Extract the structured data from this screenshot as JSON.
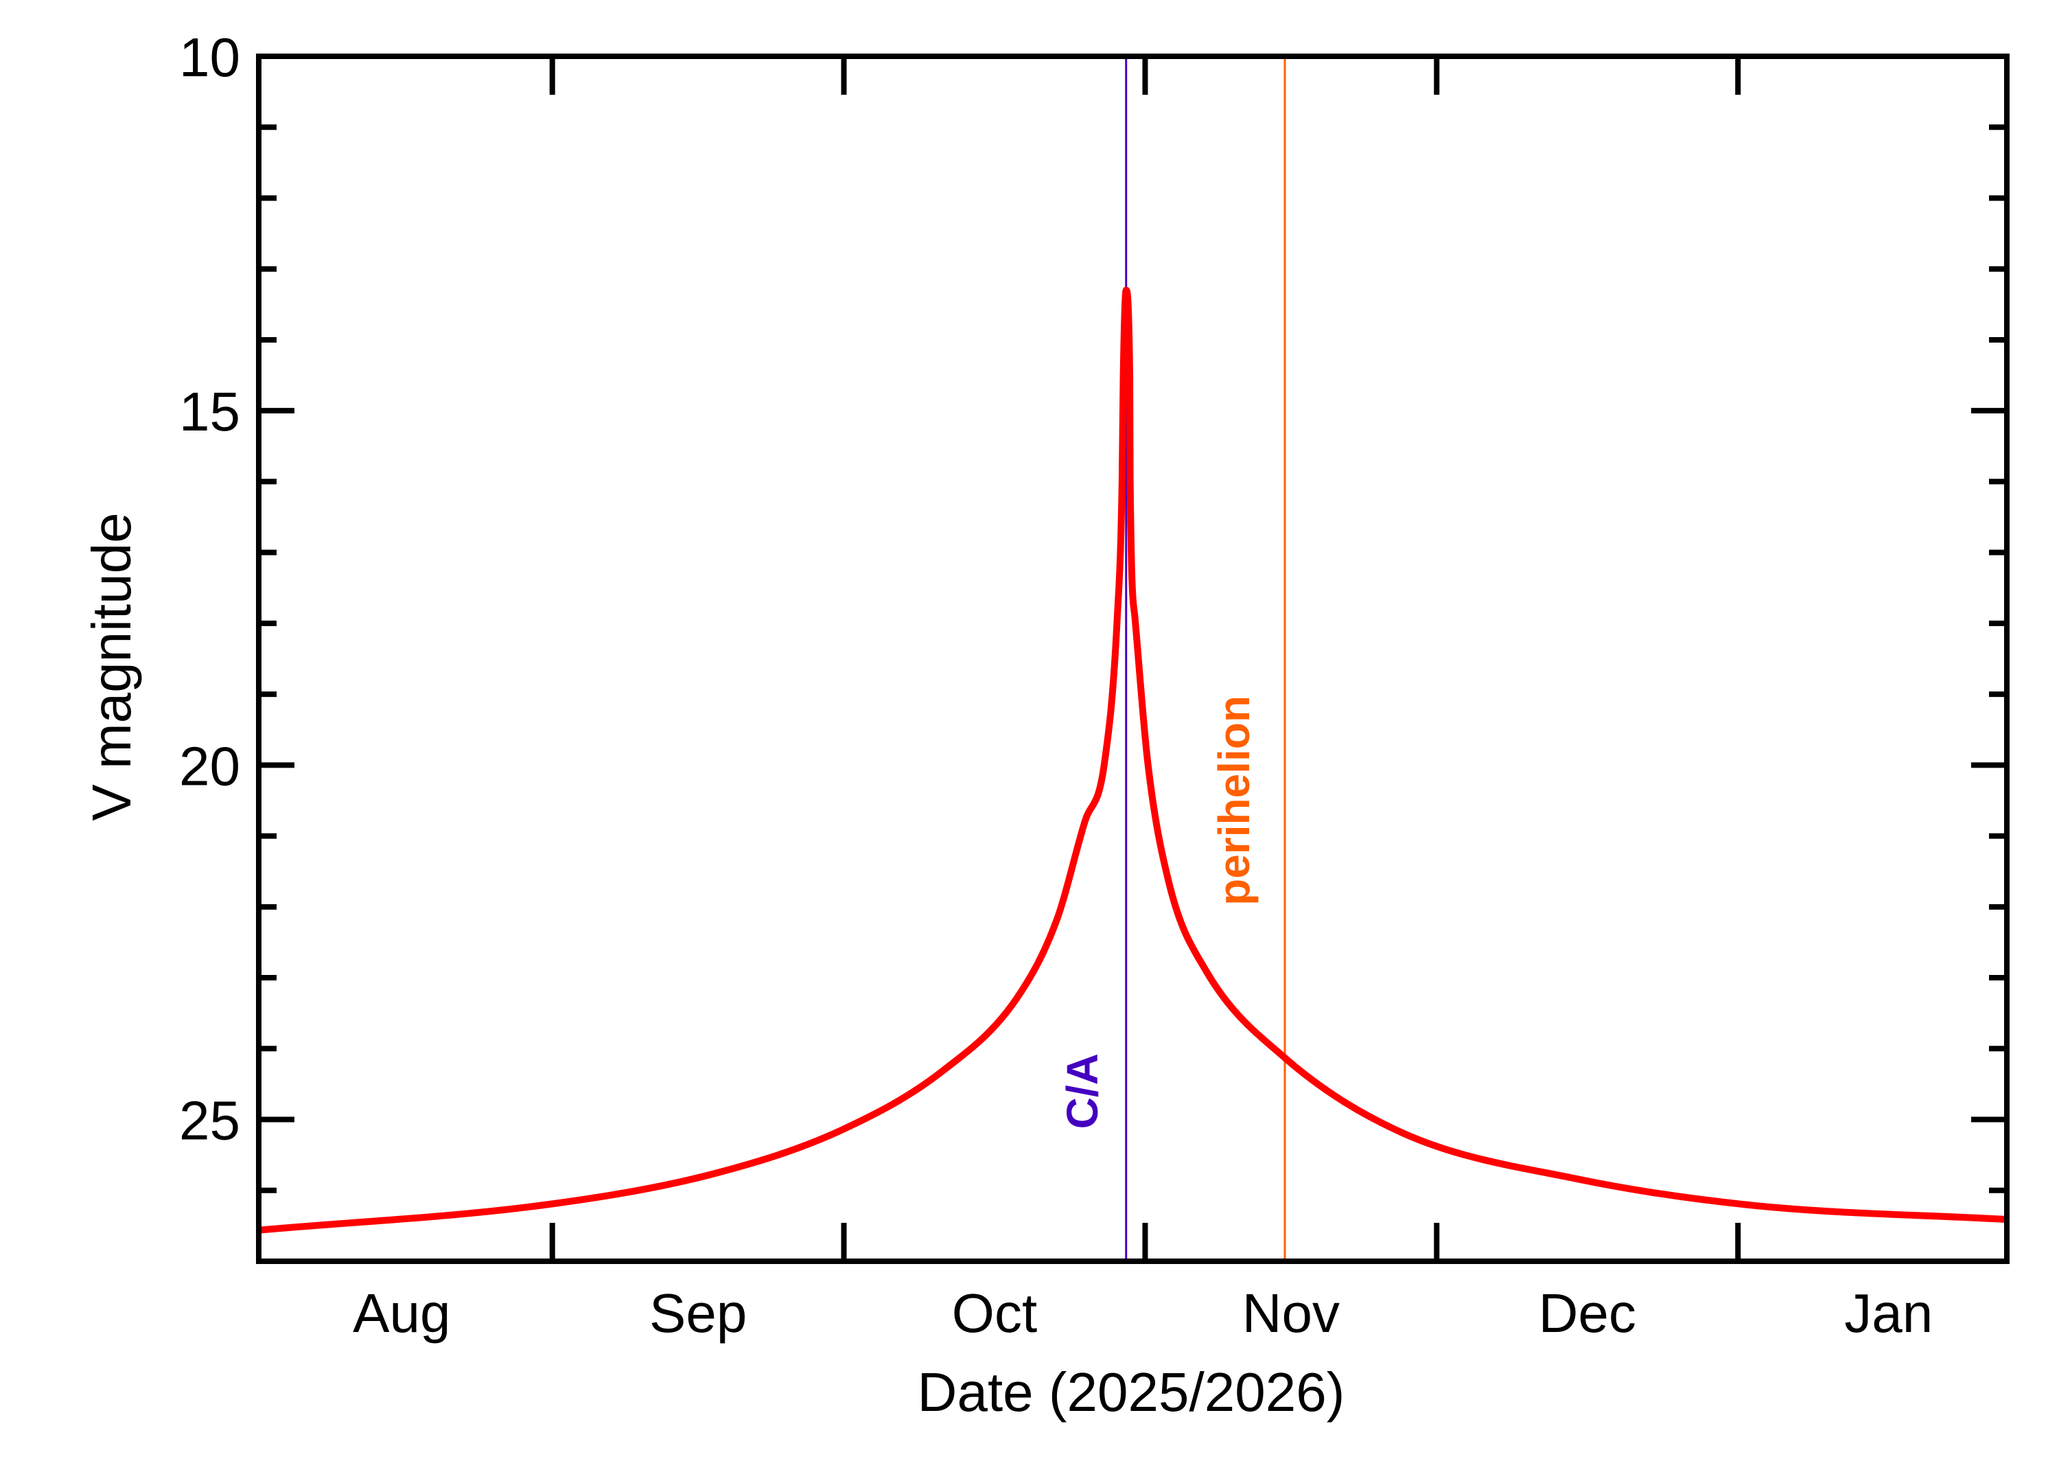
{
  "chart_data": {
    "type": "line",
    "title": "",
    "xlabel": "Date (2025/2026)",
    "ylabel": "V magnitude",
    "xlim": [
      "2025-08-01T19:00",
      "2026-01-28T16:00"
    ],
    "ylim": [
      10,
      27
    ],
    "y_inverted": true,
    "grid": false,
    "y_ticks": [
      10,
      15,
      20,
      25
    ],
    "y_minor_step": 1,
    "x_ticks": [
      "2025-09-01",
      "2025-10-01",
      "2025-11-01",
      "2025-12-01",
      "2026-01-01"
    ],
    "x_tick_labels": [
      {
        "label": "Aug",
        "month": "2025-08"
      },
      {
        "label": "Sep",
        "month": "2025-09"
      },
      {
        "label": "Oct",
        "month": "2025-10"
      },
      {
        "label": "Nov",
        "month": "2025-11"
      },
      {
        "label": "Dec",
        "month": "2025-12"
      },
      {
        "label": "Jan",
        "month": "2026-01"
      }
    ],
    "series": [
      {
        "color": "#ff0000",
        "points": [
          [
            "2025-08-01T22:00",
            26.56
          ],
          [
            "2025-09-01T00:00",
            26.19
          ],
          [
            "2025-09-17T18:00",
            25.76
          ],
          [
            "2025-09-30T18:00",
            25.15
          ],
          [
            "2025-10-11T05:00",
            24.31
          ],
          [
            "2025-10-18T19:00",
            23.29
          ],
          [
            "2025-10-22T22:00",
            22.18
          ],
          [
            "2025-10-25T19:00",
            20.8
          ],
          [
            "2025-10-27T19:00",
            19.99
          ],
          [
            "2025-10-29T03:00",
            17.93
          ],
          [
            "2025-10-29T15:00",
            15.99
          ],
          [
            "2025-10-29T18:00",
            14.5
          ],
          [
            "2025-10-30T01:00",
            13.3
          ],
          [
            "2025-10-30T10:00",
            14.5
          ],
          [
            "2025-10-30T11:00",
            15.99
          ],
          [
            "2025-10-30T23:00",
            17.93
          ],
          [
            "2025-11-01T07:00",
            19.99
          ],
          [
            "2025-11-03T13:00",
            21.71
          ],
          [
            "2025-11-07T04:00",
            22.88
          ],
          [
            "2025-11-15T09:00",
            24.13
          ],
          [
            "2025-11-27T12:00",
            25.19
          ],
          [
            "2025-12-15T12:00",
            25.84
          ],
          [
            "2026-01-02T10:00",
            26.21
          ],
          [
            "2026-01-28T16:00",
            26.41
          ]
        ]
      }
    ],
    "annotations": [
      {
        "label": "C/A",
        "date": "2025-10-30T01:00",
        "color": "#4400c0",
        "mag": 24.6
      },
      {
        "label": "perihelion",
        "date": "2025-11-15T09:00",
        "color": "#ff6000",
        "mag": 20.5
      }
    ]
  }
}
